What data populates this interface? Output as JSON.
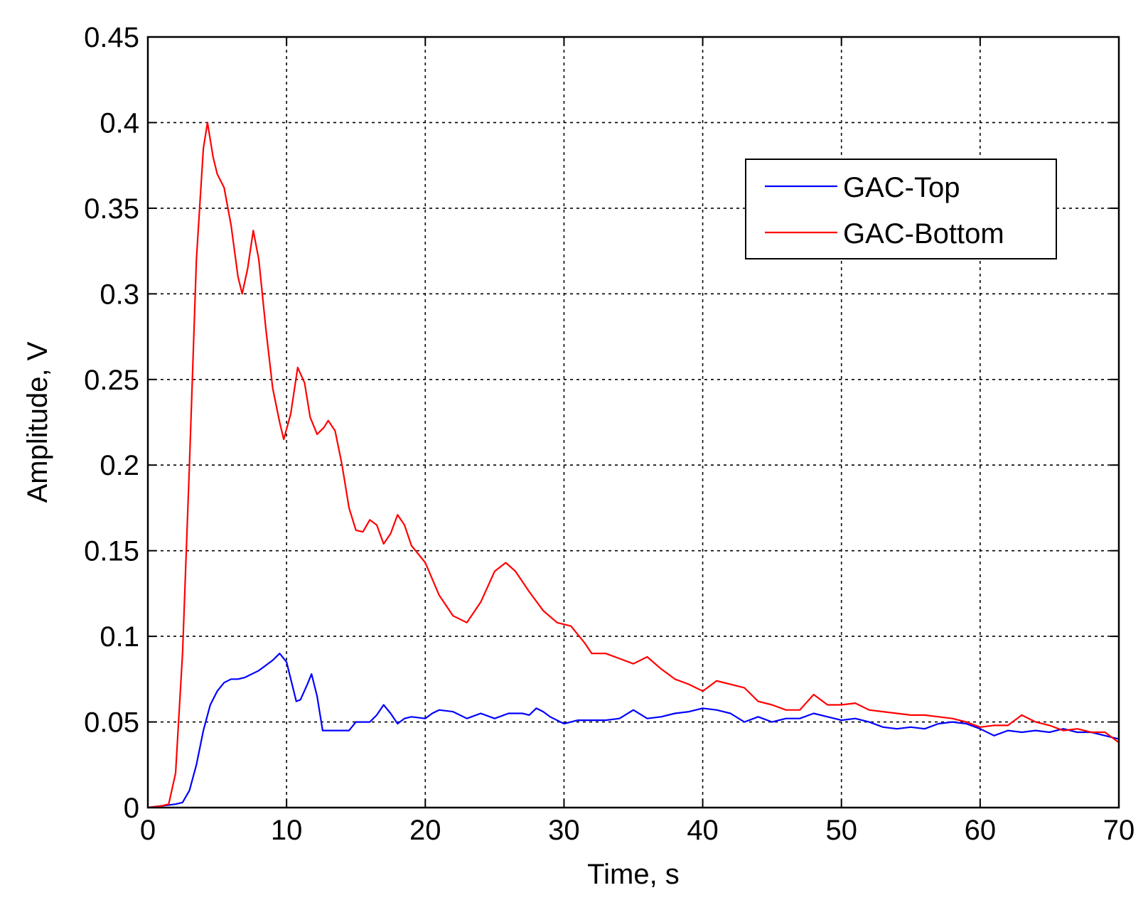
{
  "chart_data": {
    "type": "line",
    "xlabel": "Time, s",
    "ylabel": "Amplitude, V",
    "xlim": [
      0,
      70
    ],
    "ylim": [
      0,
      0.45
    ],
    "xticks": [
      0,
      10,
      20,
      30,
      40,
      50,
      60,
      70
    ],
    "yticks": [
      0,
      0.05,
      0.1,
      0.15,
      0.2,
      0.25,
      0.3,
      0.35,
      0.4,
      0.45
    ],
    "xtick_labels": [
      "0",
      "10",
      "20",
      "30",
      "40",
      "50",
      "60",
      "70"
    ],
    "ytick_labels": [
      "0",
      "0.05",
      "0.1",
      "0.15",
      "0.2",
      "0.25",
      "0.3",
      "0.35",
      "0.4",
      "0.45"
    ],
    "grid": true,
    "legend_position": "top-right",
    "series": [
      {
        "name": "GAC-Top",
        "color": "#0000ff",
        "points": [
          [
            0,
            0
          ],
          [
            1,
            0.001
          ],
          [
            2,
            0.002
          ],
          [
            2.5,
            0.003
          ],
          [
            3,
            0.01
          ],
          [
            3.5,
            0.025
          ],
          [
            4,
            0.045
          ],
          [
            4.5,
            0.06
          ],
          [
            5,
            0.068
          ],
          [
            5.5,
            0.073
          ],
          [
            6,
            0.075
          ],
          [
            6.5,
            0.075
          ],
          [
            7,
            0.076
          ],
          [
            8,
            0.08
          ],
          [
            9,
            0.086
          ],
          [
            9.5,
            0.09
          ],
          [
            10,
            0.085
          ],
          [
            10.4,
            0.072
          ],
          [
            10.7,
            0.062
          ],
          [
            11,
            0.063
          ],
          [
            11.5,
            0.072
          ],
          [
            11.8,
            0.078
          ],
          [
            12.2,
            0.065
          ],
          [
            12.6,
            0.045
          ],
          [
            13.5,
            0.045
          ],
          [
            14.5,
            0.045
          ],
          [
            15,
            0.05
          ],
          [
            16,
            0.05
          ],
          [
            16.5,
            0.054
          ],
          [
            17,
            0.06
          ],
          [
            17.5,
            0.055
          ],
          [
            18,
            0.049
          ],
          [
            18.5,
            0.052
          ],
          [
            19,
            0.053
          ],
          [
            20,
            0.052
          ],
          [
            20.5,
            0.055
          ],
          [
            21,
            0.057
          ],
          [
            22,
            0.056
          ],
          [
            23,
            0.052
          ],
          [
            24,
            0.055
          ],
          [
            25,
            0.052
          ],
          [
            26,
            0.055
          ],
          [
            27,
            0.055
          ],
          [
            27.5,
            0.054
          ],
          [
            28,
            0.058
          ],
          [
            28.5,
            0.056
          ],
          [
            29,
            0.053
          ],
          [
            30,
            0.049
          ],
          [
            30.5,
            0.05
          ],
          [
            31,
            0.051
          ],
          [
            32,
            0.051
          ],
          [
            33,
            0.051
          ],
          [
            34,
            0.052
          ],
          [
            35,
            0.057
          ],
          [
            36,
            0.052
          ],
          [
            37,
            0.053
          ],
          [
            38,
            0.055
          ],
          [
            39,
            0.056
          ],
          [
            40,
            0.058
          ],
          [
            41,
            0.057
          ],
          [
            42,
            0.055
          ],
          [
            43,
            0.05
          ],
          [
            44,
            0.053
          ],
          [
            45,
            0.05
          ],
          [
            46,
            0.052
          ],
          [
            47,
            0.052
          ],
          [
            48,
            0.055
          ],
          [
            49,
            0.053
          ],
          [
            50,
            0.051
          ],
          [
            51,
            0.052
          ],
          [
            52,
            0.05
          ],
          [
            53,
            0.047
          ],
          [
            54,
            0.046
          ],
          [
            55,
            0.047
          ],
          [
            56,
            0.046
          ],
          [
            57,
            0.049
          ],
          [
            58,
            0.05
          ],
          [
            59,
            0.049
          ],
          [
            60,
            0.046
          ],
          [
            61,
            0.042
          ],
          [
            62,
            0.045
          ],
          [
            63,
            0.044
          ],
          [
            64,
            0.045
          ],
          [
            65,
            0.044
          ],
          [
            66,
            0.046
          ],
          [
            67,
            0.044
          ],
          [
            68,
            0.044
          ],
          [
            69,
            0.042
          ],
          [
            70,
            0.04
          ]
        ]
      },
      {
        "name": "GAC-Bottom",
        "color": "#ff0000",
        "points": [
          [
            0,
            0
          ],
          [
            1,
            0.001
          ],
          [
            1.5,
            0.002
          ],
          [
            2,
            0.02
          ],
          [
            2.5,
            0.09
          ],
          [
            3,
            0.2
          ],
          [
            3.5,
            0.32
          ],
          [
            4,
            0.385
          ],
          [
            4.3,
            0.4
          ],
          [
            4.7,
            0.38
          ],
          [
            5,
            0.37
          ],
          [
            5.5,
            0.362
          ],
          [
            6,
            0.34
          ],
          [
            6.5,
            0.31
          ],
          [
            6.8,
            0.3
          ],
          [
            7.2,
            0.315
          ],
          [
            7.6,
            0.337
          ],
          [
            8,
            0.32
          ],
          [
            8.5,
            0.28
          ],
          [
            9,
            0.245
          ],
          [
            9.5,
            0.225
          ],
          [
            9.8,
            0.215
          ],
          [
            10.3,
            0.23
          ],
          [
            10.8,
            0.257
          ],
          [
            11.3,
            0.248
          ],
          [
            11.7,
            0.228
          ],
          [
            12.2,
            0.218
          ],
          [
            12.7,
            0.222
          ],
          [
            13,
            0.226
          ],
          [
            13.5,
            0.22
          ],
          [
            14,
            0.2
          ],
          [
            14.5,
            0.175
          ],
          [
            15,
            0.162
          ],
          [
            15.5,
            0.161
          ],
          [
            16,
            0.168
          ],
          [
            16.5,
            0.165
          ],
          [
            17,
            0.154
          ],
          [
            17.5,
            0.16
          ],
          [
            18,
            0.171
          ],
          [
            18.5,
            0.165
          ],
          [
            19,
            0.153
          ],
          [
            20,
            0.143
          ],
          [
            21,
            0.124
          ],
          [
            22,
            0.112
          ],
          [
            23,
            0.108
          ],
          [
            24,
            0.12
          ],
          [
            25,
            0.138
          ],
          [
            25.8,
            0.143
          ],
          [
            26.5,
            0.138
          ],
          [
            27.5,
            0.126
          ],
          [
            28.5,
            0.115
          ],
          [
            29.5,
            0.108
          ],
          [
            30.5,
            0.106
          ],
          [
            31.5,
            0.096
          ],
          [
            32,
            0.09
          ],
          [
            33,
            0.09
          ],
          [
            34,
            0.087
          ],
          [
            35,
            0.084
          ],
          [
            36,
            0.088
          ],
          [
            37,
            0.081
          ],
          [
            38,
            0.075
          ],
          [
            39,
            0.072
          ],
          [
            40,
            0.068
          ],
          [
            41,
            0.074
          ],
          [
            42,
            0.072
          ],
          [
            43,
            0.07
          ],
          [
            44,
            0.062
          ],
          [
            45,
            0.06
          ],
          [
            46,
            0.057
          ],
          [
            47,
            0.057
          ],
          [
            48,
            0.066
          ],
          [
            49,
            0.06
          ],
          [
            50,
            0.06
          ],
          [
            51,
            0.061
          ],
          [
            52,
            0.057
          ],
          [
            53,
            0.056
          ],
          [
            54,
            0.055
          ],
          [
            55,
            0.054
          ],
          [
            56,
            0.054
          ],
          [
            57,
            0.053
          ],
          [
            58,
            0.052
          ],
          [
            59,
            0.05
          ],
          [
            60,
            0.047
          ],
          [
            61,
            0.048
          ],
          [
            62,
            0.048
          ],
          [
            63,
            0.054
          ],
          [
            64,
            0.05
          ],
          [
            65,
            0.048
          ],
          [
            66,
            0.045
          ],
          [
            67,
            0.046
          ],
          [
            68,
            0.044
          ],
          [
            69,
            0.044
          ],
          [
            70,
            0.038
          ]
        ]
      }
    ]
  }
}
